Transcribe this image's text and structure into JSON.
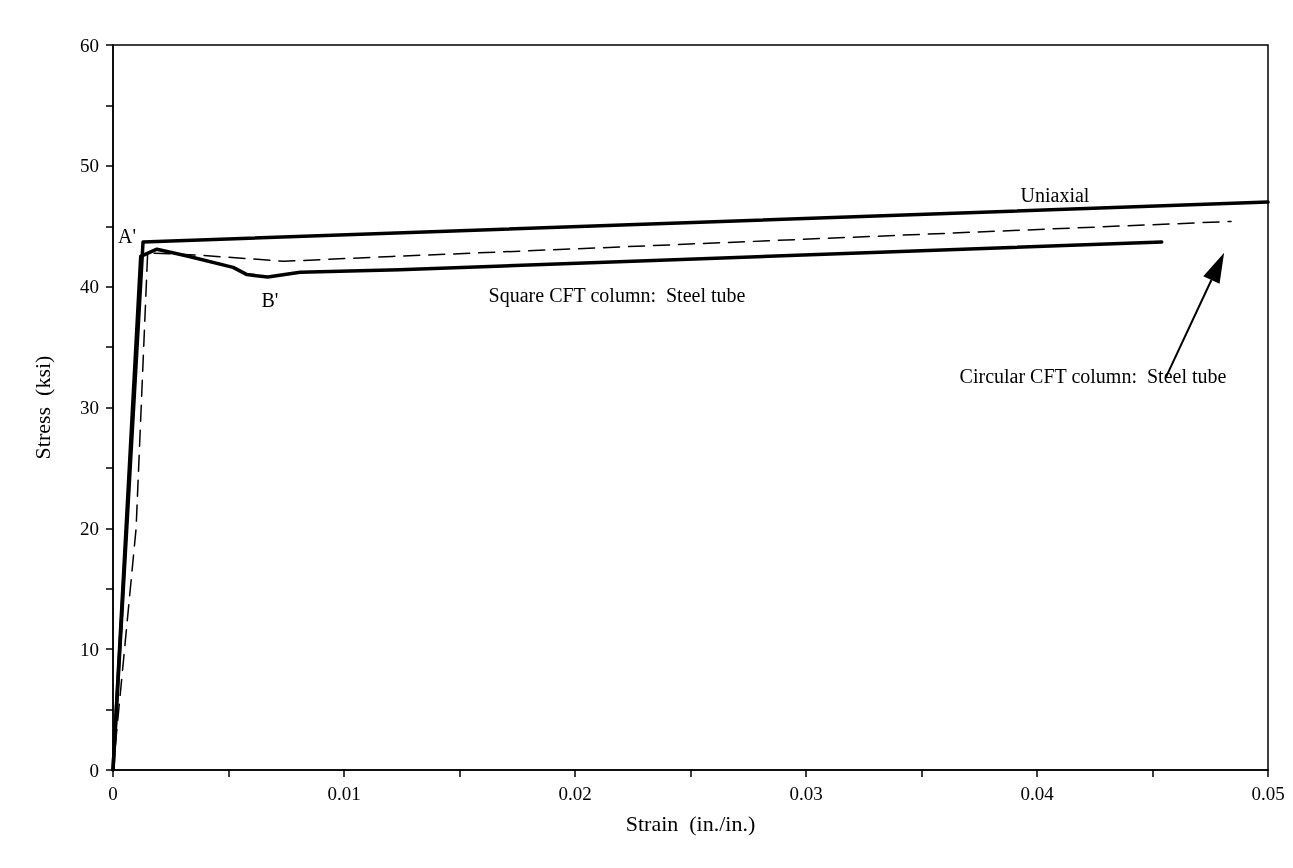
{
  "chart_data": {
    "type": "line",
    "xlabel": "Strain  (in./in.)",
    "ylabel": "Stress  (ksi)",
    "xlim": [
      0,
      0.05
    ],
    "ylim": [
      0,
      60
    ],
    "xticks": [
      0,
      {
        "value": 0.005,
        "label": null
      },
      0.01,
      {
        "value": 0.015,
        "label": null
      },
      0.02,
      {
        "value": 0.025,
        "label": null
      },
      0.03,
      {
        "value": 0.035,
        "label": null
      },
      0.04,
      {
        "value": 0.045,
        "label": null
      },
      0.05
    ],
    "yticks": [
      0,
      {
        "value": 5,
        "label": null
      },
      10,
      {
        "value": 15,
        "label": null
      },
      20,
      {
        "value": 25,
        "label": null
      },
      30,
      {
        "value": 35,
        "label": null
      },
      40,
      {
        "value": 45,
        "label": null
      },
      50,
      {
        "value": 55,
        "label": null
      },
      60
    ],
    "grid": false,
    "marker": "none",
    "series": [
      {
        "color": "#000000",
        "line_style": "solid",
        "x": [
          0,
          0.0013,
          0.05
        ],
        "values": [
          0,
          43.7,
          47.0
        ]
      },
      {
        "color": "#000000",
        "line_style": "solid",
        "x": [
          0,
          0.0012,
          0.0019,
          0.0033,
          0.0052,
          0.0058,
          0.0067,
          0.0081,
          0.0124,
          0.0454
        ],
        "values": [
          0,
          42.5,
          43.1,
          42.5,
          41.6,
          41.0,
          40.8,
          41.2,
          41.4,
          43.7
        ]
      },
      {
        "color": "#000000",
        "line_style": "dashed",
        "x": [
          0,
          0.001,
          0.0015,
          0.0038,
          0.0074,
          0.0121,
          0.0484
        ],
        "values": [
          0,
          20,
          42.8,
          42.6,
          42.1,
          42.5,
          45.4
        ]
      }
    ],
    "annotations": [
      "Uniaxial",
      "A'",
      "B'",
      "Square CFT column:  Steel tube",
      "Circular CFT column:  Steel tube"
    ]
  }
}
